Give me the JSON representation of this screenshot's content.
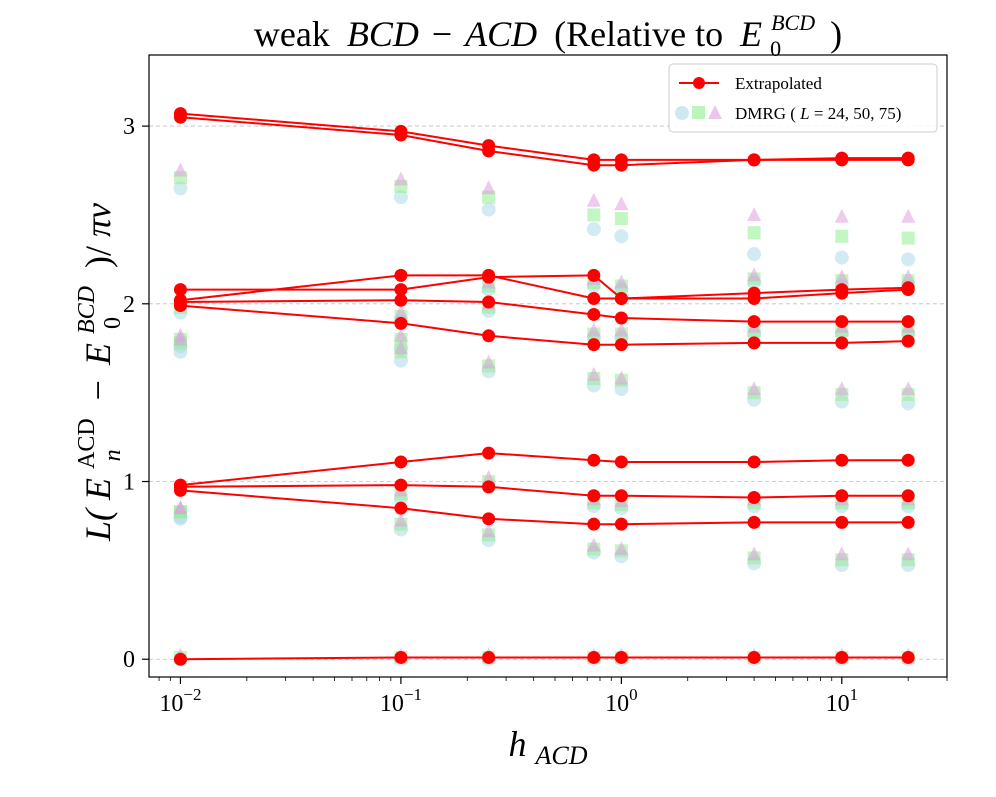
{
  "chart_data": {
    "type": "line",
    "title": "weak BCD − ACD (Relative to E0^BCD)",
    "title_parts": {
      "prefix": "weak",
      "left": "BCD",
      "minus": "−",
      "right": "ACD",
      "paren_open": "(Relative to",
      "E": "E",
      "E_sub": "0",
      "E_sup": "BCD",
      "paren_close": ")"
    },
    "xlabel": "h_ACD",
    "xlabel_parts": {
      "base": "h",
      "sub": "ACD"
    },
    "ylabel": "L(E_n^ACD − E_0^BCD)/πv",
    "ylabel_parts": {
      "L": "L(",
      "E": "E",
      "E_sub": "n",
      "E_sup": "ACD",
      "minus": "−",
      "E2": "E",
      "E2_sub": "0",
      "E2_sup": "BCD",
      "close": ")/",
      "pi_v": "πv"
    },
    "xscale": "log",
    "xlim": [
      0.0072,
      30
    ],
    "ylim": [
      -0.1,
      3.4
    ],
    "x_ticks": [
      {
        "value": 0.01,
        "base": "10",
        "exp": "−2"
      },
      {
        "value": 0.1,
        "base": "10",
        "exp": "−1"
      },
      {
        "value": 1,
        "base": "10",
        "exp": "0"
      },
      {
        "value": 10,
        "base": "10",
        "exp": "1"
      }
    ],
    "y_ticks": [
      {
        "value": 0,
        "label": "0"
      },
      {
        "value": 1,
        "label": "1"
      },
      {
        "value": 2,
        "label": "2"
      },
      {
        "value": 3,
        "label": "3"
      }
    ],
    "grid": "horizontal dashed",
    "legend": {
      "position": "top-right",
      "entries": [
        {
          "label": "Extrapolated"
        },
        {
          "label_prefix": "DMRG (",
          "label_var": "L",
          "label_suffix": " = 24, 50, 75)"
        }
      ]
    },
    "x": [
      0.01,
      0.1,
      0.25,
      0.75,
      1,
      4,
      10,
      20
    ],
    "series": [
      {
        "name": "Extrapolated level 1",
        "values": [
          3.07,
          2.97,
          2.89,
          2.81,
          2.81,
          2.81,
          2.82,
          2.82
        ]
      },
      {
        "name": "Extrapolated level 2",
        "values": [
          3.05,
          2.95,
          2.86,
          2.78,
          2.78,
          2.81,
          2.81,
          2.81
        ]
      },
      {
        "name": "Extrapolated level 3",
        "values": [
          2.08,
          2.08,
          2.15,
          2.16,
          2.03,
          2.03,
          2.06,
          2.08
        ]
      },
      {
        "name": "Extrapolated level 4",
        "values": [
          2.02,
          2.16,
          2.16,
          2.03,
          2.03,
          2.06,
          2.08,
          2.09
        ]
      },
      {
        "name": "Extrapolated level 5",
        "values": [
          2.01,
          2.02,
          2.01,
          1.94,
          1.92,
          1.9,
          1.9,
          1.9
        ]
      },
      {
        "name": "Extrapolated level 6",
        "values": [
          1.99,
          1.89,
          1.82,
          1.77,
          1.77,
          1.78,
          1.78,
          1.79
        ]
      },
      {
        "name": "Extrapolated level 7",
        "values": [
          0.98,
          1.11,
          1.16,
          1.12,
          1.11,
          1.11,
          1.12,
          1.12
        ]
      },
      {
        "name": "Extrapolated level 8",
        "values": [
          0.97,
          0.98,
          0.97,
          0.92,
          0.92,
          0.91,
          0.92,
          0.92
        ]
      },
      {
        "name": "Extrapolated level 9",
        "values": [
          0.95,
          0.85,
          0.79,
          0.76,
          0.76,
          0.77,
          0.77,
          0.77
        ]
      },
      {
        "name": "Extrapolated level 10",
        "values": [
          0.0,
          0.01,
          0.01,
          0.01,
          0.01,
          0.01,
          0.01,
          0.01
        ]
      }
    ],
    "dmrg_series": [
      {
        "name": "DMRG L=24",
        "marker": "circle",
        "color": "#add8e6",
        "levels": [
          [
            2.65,
            2.6,
            2.53,
            2.42,
            2.38,
            2.28,
            2.26,
            2.25
          ],
          [
            1.73,
            1.68,
            1.62,
            1.54,
            1.52,
            1.46,
            1.45,
            1.44
          ],
          [
            0.79,
            0.73,
            0.67,
            0.6,
            0.58,
            0.54,
            0.53,
            0.53
          ],
          [
            1.76,
            1.75,
            1.96,
            1.81,
            1.81,
            1.83,
            1.83,
            1.83
          ],
          [
            1.95,
            1.9,
            2.08,
            2.1,
            2.08,
            2.12,
            2.1,
            2.1
          ],
          [
            0.8,
            0.9,
            0.97,
            0.86,
            0.85,
            0.86,
            0.86,
            0.86
          ],
          [
            0.0,
            0.0,
            0.0,
            0.0,
            0.0,
            0.0,
            0.0,
            0.0
          ]
        ]
      },
      {
        "name": "DMRG L=50",
        "marker": "square",
        "color": "#90ee90",
        "levels": [
          [
            2.71,
            2.66,
            2.6,
            2.5,
            2.48,
            2.4,
            2.38,
            2.37
          ],
          [
            1.78,
            1.73,
            1.65,
            1.58,
            1.57,
            1.5,
            1.49,
            1.49
          ],
          [
            0.83,
            0.76,
            0.7,
            0.62,
            0.61,
            0.57,
            0.56,
            0.56
          ],
          [
            1.8,
            1.8,
            1.98,
            1.83,
            1.83,
            1.85,
            1.85,
            1.85
          ],
          [
            1.98,
            1.93,
            2.1,
            2.12,
            2.1,
            2.14,
            2.13,
            2.13
          ],
          [
            0.83,
            0.93,
            1.0,
            0.88,
            0.87,
            0.88,
            0.88,
            0.88
          ],
          [
            0.01,
            0.01,
            0.01,
            0.01,
            0.01,
            0.01,
            0.01,
            0.01
          ]
        ]
      },
      {
        "name": "DMRG L=75",
        "marker": "triangle",
        "color": "#dda0dd",
        "levels": [
          [
            2.75,
            2.7,
            2.65,
            2.58,
            2.56,
            2.5,
            2.49,
            2.49
          ],
          [
            1.8,
            1.75,
            1.67,
            1.6,
            1.58,
            1.52,
            1.52,
            1.52
          ],
          [
            0.85,
            0.78,
            0.72,
            0.64,
            0.62,
            0.59,
            0.59,
            0.59
          ],
          [
            1.82,
            1.82,
            2.0,
            1.85,
            1.85,
            1.87,
            1.87,
            1.87
          ],
          [
            2.0,
            1.95,
            2.12,
            2.14,
            2.12,
            2.16,
            2.15,
            2.15
          ],
          [
            0.85,
            0.95,
            1.02,
            0.9,
            0.89,
            0.9,
            0.9,
            0.9
          ],
          [
            0.02,
            0.02,
            0.02,
            0.02,
            0.02,
            0.02,
            0.02,
            0.02
          ]
        ]
      }
    ],
    "colors": {
      "line": "#ff0000",
      "marker": "#ff0000",
      "dmrg_24": "#add8e6",
      "dmrg_50": "#90ee90",
      "dmrg_75": "#dda0dd",
      "grid": "#b0b0b0",
      "axes": "#000000"
    }
  }
}
